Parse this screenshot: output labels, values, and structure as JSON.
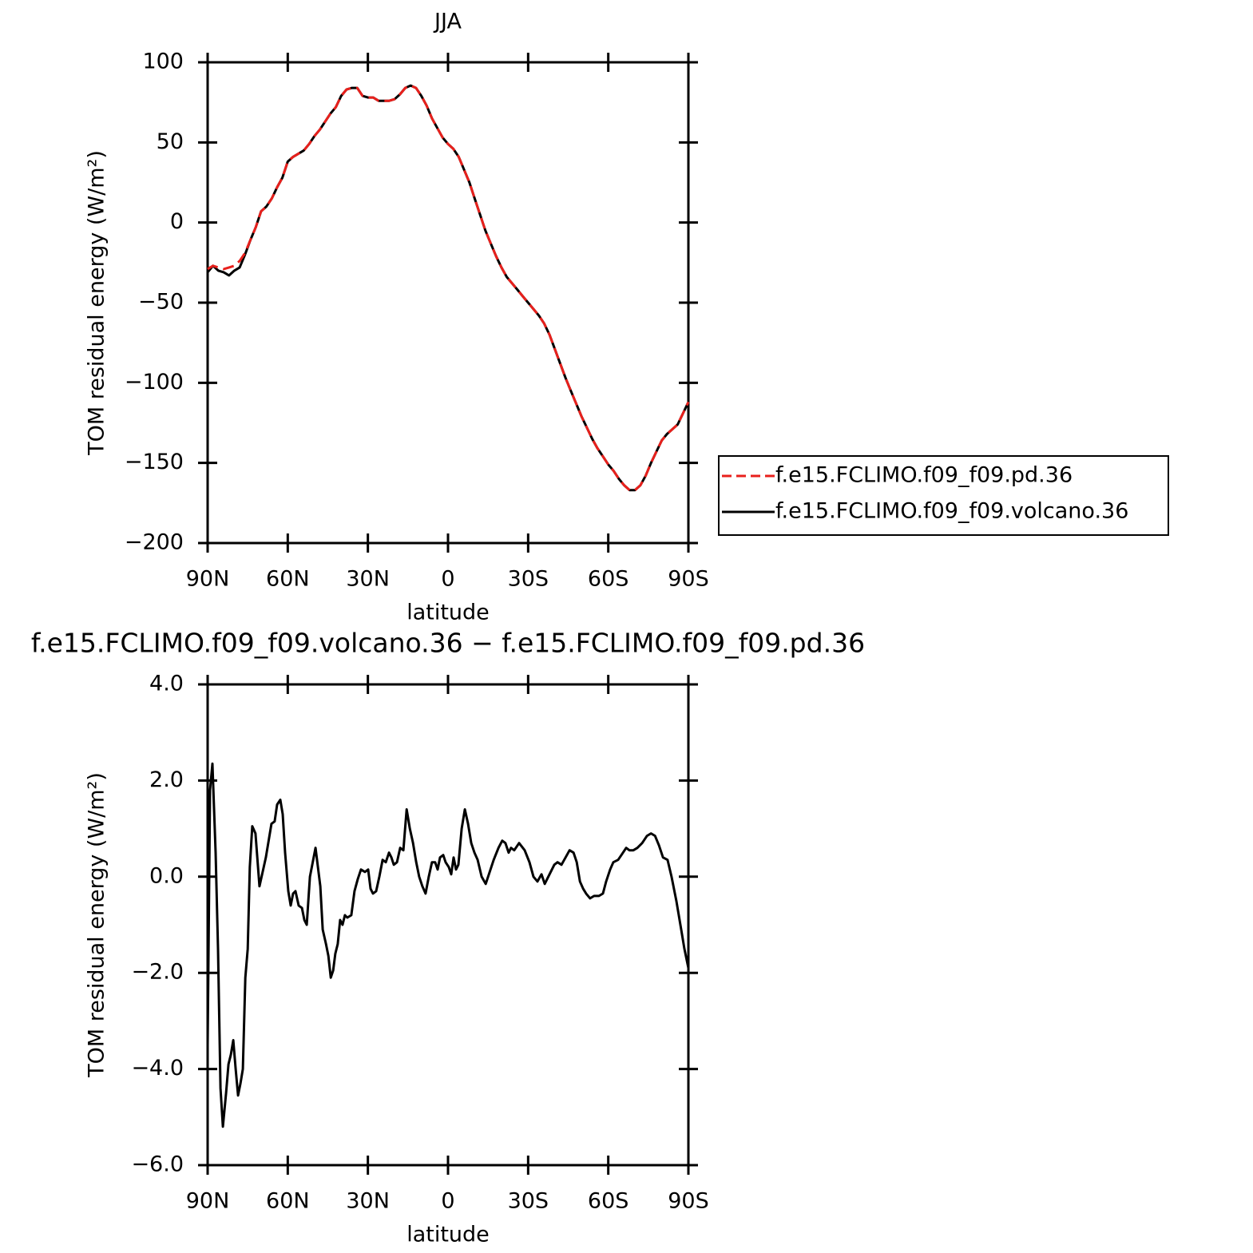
{
  "chart_data": [
    {
      "type": "line",
      "title": "JJA",
      "xlabel": "latitude",
      "ylabel": "TOM residual energy (W/m²)",
      "xlim": [
        90,
        -90
      ],
      "xticks": [
        {
          "value": 90,
          "label": "90N"
        },
        {
          "value": 60,
          "label": "60N"
        },
        {
          "value": 30,
          "label": "30N"
        },
        0,
        {
          "value": -30,
          "label": "30S"
        },
        {
          "value": -60,
          "label": "60S"
        },
        {
          "value": -90,
          "label": "90S"
        }
      ],
      "ylim": [
        -200,
        100
      ],
      "yticks": [
        {
          "value": 100,
          "label": "100"
        },
        {
          "value": 50,
          "label": "50"
        },
        0,
        {
          "value": -50,
          "label": "−50"
        },
        {
          "value": -100,
          "label": "−100"
        },
        {
          "value": -150,
          "label": "−150"
        },
        {
          "value": -200,
          "label": "−200"
        }
      ],
      "legend": "right",
      "x": [
        90,
        88,
        86,
        84,
        82,
        80,
        78,
        76,
        74,
        72,
        70,
        68,
        66,
        64,
        62,
        60,
        58,
        56,
        54,
        52,
        50,
        48,
        46,
        44,
        42,
        40,
        38,
        36,
        34,
        32,
        30,
        28,
        26,
        24,
        22,
        20,
        18,
        16,
        14,
        12,
        10,
        8,
        6,
        4,
        2,
        0,
        -2,
        -4,
        -6,
        -8,
        -10,
        -12,
        -14,
        -16,
        -18,
        -20,
        -22,
        -24,
        -26,
        -28,
        -30,
        -32,
        -34,
        -36,
        -38,
        -40,
        -42,
        -44,
        -46,
        -48,
        -50,
        -52,
        -54,
        -56,
        -58,
        -60,
        -62,
        -64,
        -66,
        -68,
        -70,
        -72,
        -74,
        -76,
        -78,
        -80,
        -82,
        -84,
        -86,
        -88,
        -90
      ],
      "series": [
        {
          "name": "f.e15.FCLIMO.f09_f09.pd.36",
          "color": "#e8201c",
          "line_style": "dashed",
          "values": [
            -29,
            -27,
            -28,
            -29,
            -28,
            -27,
            -24,
            -19,
            -11,
            -3,
            7,
            10,
            15,
            22,
            28,
            38,
            41,
            43,
            45,
            49,
            54,
            58,
            63,
            68,
            72,
            79,
            83,
            84,
            84,
            79,
            78,
            78,
            76,
            76,
            76,
            77,
            80,
            84,
            85.5,
            84,
            79,
            73,
            65,
            59,
            53,
            49,
            46,
            41,
            33,
            25,
            15,
            5,
            -5,
            -13,
            -21,
            -28,
            -34,
            -38,
            -42,
            -46,
            -50,
            -54,
            -58,
            -63,
            -70,
            -79,
            -88,
            -97,
            -105,
            -113,
            -121,
            -128,
            -135,
            -141,
            -146,
            -151,
            -155,
            -160,
            -164,
            -167,
            -167,
            -164,
            -158,
            -150,
            -143,
            -136,
            -132,
            -129,
            -126,
            -119,
            -112
          ]
        },
        {
          "name": "f.e15.FCLIMO.f09_f09.volcano.36",
          "color": "#000000",
          "line_style": "solid",
          "values": [
            -31,
            -27,
            -30,
            -31,
            -33,
            -30,
            -28,
            -20,
            -11,
            -3,
            7,
            10,
            15,
            22,
            28,
            38,
            41,
            43,
            45,
            49,
            54,
            58,
            63,
            68,
            72,
            79,
            83,
            84,
            84,
            79,
            78,
            78,
            76,
            76,
            76,
            77,
            80,
            84,
            85.5,
            84,
            79,
            73,
            65,
            59,
            53,
            49,
            46,
            41,
            33,
            25,
            15,
            5,
            -5,
            -13,
            -21,
            -28,
            -34,
            -38,
            -42,
            -46,
            -50,
            -54,
            -58,
            -63,
            -70,
            -79,
            -88,
            -97,
            -105,
            -113,
            -121,
            -128,
            -135,
            -141,
            -146,
            -151,
            -155,
            -160,
            -164,
            -167,
            -167,
            -164,
            -158,
            -150,
            -143,
            -136,
            -132,
            -129,
            -126,
            -119,
            -112
          ]
        }
      ]
    },
    {
      "type": "line",
      "title": "f.e15.FCLIMO.f09_f09.volcano.36 − f.e15.FCLIMO.f09_f09.pd.36",
      "xlabel": "latitude",
      "ylabel": "TOM residual energy (W/m²)",
      "xlim": [
        90,
        -90
      ],
      "xticks": [
        {
          "value": 90,
          "label": "90N"
        },
        {
          "value": 60,
          "label": "60N"
        },
        {
          "value": 30,
          "label": "30N"
        },
        0,
        {
          "value": -30,
          "label": "30S"
        },
        {
          "value": -60,
          "label": "60S"
        },
        {
          "value": -90,
          "label": "90S"
        }
      ],
      "ylim": [
        -6,
        4
      ],
      "yticks": [
        {
          "value": 4,
          "label": "4.0"
        },
        {
          "value": 2,
          "label": "2.0"
        },
        {
          "value": 0,
          "label": "0.0"
        },
        {
          "value": -2,
          "label": "−2.0"
        },
        {
          "value": -4,
          "label": "−4.0"
        },
        {
          "value": -6,
          "label": "−6.0"
        }
      ],
      "color": "#000000",
      "x": [
        90,
        89.1,
        88.2,
        87,
        86.1,
        85.2,
        84.3,
        83.1,
        82.2,
        81.3,
        80.4,
        79.5,
        78.6,
        77.7,
        76.8,
        75.9,
        75,
        74.2,
        73.3,
        72.1,
        70.6,
        69.4,
        68.2,
        66.1,
        64.9,
        64,
        62.8,
        61.9,
        61,
        59.8,
        58.9,
        58,
        57.1,
        55.9,
        54.7,
        53.8,
        52.9,
        51.7,
        49.6,
        47.8,
        46.9,
        45.7,
        44.8,
        43.9,
        43,
        42.2,
        41.3,
        40.4,
        39.5,
        38.6,
        37.7,
        36.2,
        35,
        33.8,
        32.6,
        31.1,
        29.9,
        29,
        28.1,
        26.9,
        25.7,
        24.5,
        23.3,
        22.1,
        21.2,
        20.3,
        19.1,
        17.9,
        16.7,
        15.5,
        14.3,
        13.1,
        11.9,
        10.8,
        9.6,
        8.4,
        7.2,
        6,
        4.8,
        3.9,
        3,
        1.8,
        0.9,
        -0.3,
        -1.2,
        -2.1,
        -3,
        -3.9,
        -5.1,
        -6.3,
        -7.5,
        -8.7,
        -9.9,
        -11.1,
        -12.6,
        -14.1,
        -15.3,
        -17.1,
        -18.9,
        -20.3,
        -21.5,
        -22.7,
        -23.6,
        -24.8,
        -26.6,
        -28.7,
        -30.5,
        -32,
        -33.5,
        -35,
        -36.2,
        -38,
        -39.8,
        -41,
        -42.5,
        -44,
        -45.5,
        -47,
        -48.2,
        -49.4,
        -50.6,
        -51.7,
        -53.2,
        -54.7,
        -56.5,
        -58,
        -59.2,
        -60.7,
        -61.9,
        -63.7,
        -64.9,
        -66.7,
        -67.9,
        -69.4,
        -70.9,
        -72.7,
        -74.5,
        -76,
        -77.5,
        -79,
        -80.5,
        -82.2,
        -83.7,
        -85.5,
        -87.3,
        -88.5,
        -90
      ],
      "values": [
        -3.5,
        1.8,
        2.35,
        0.5,
        -1.5,
        -4.4,
        -5.2,
        -4.5,
        -3.9,
        -3.7,
        -3.4,
        -4,
        -4.55,
        -4.3,
        -4,
        -2.1,
        -1.5,
        0.2,
        1.05,
        0.9,
        -0.2,
        0.1,
        0.4,
        1.1,
        1.15,
        1.5,
        1.6,
        1.3,
        0.5,
        -0.3,
        -0.6,
        -0.35,
        -0.3,
        -0.6,
        -0.65,
        -0.9,
        -1,
        0,
        0.6,
        -0.2,
        -1.1,
        -1.4,
        -1.65,
        -2.1,
        -1.95,
        -1.6,
        -1.4,
        -0.9,
        -1,
        -0.8,
        -0.85,
        -0.8,
        -0.3,
        -0.05,
        0.15,
        0.1,
        0.15,
        -0.25,
        -0.35,
        -0.3,
        0,
        0.35,
        0.3,
        0.5,
        0.4,
        0.25,
        0.3,
        0.6,
        0.55,
        1.4,
        1,
        0.7,
        0.3,
        0,
        -0.2,
        -0.35,
        0,
        0.3,
        0.3,
        0.15,
        0.4,
        0.45,
        0.3,
        0.2,
        0.05,
        0.4,
        0.15,
        0.25,
        1,
        1.4,
        1.1,
        0.7,
        0.5,
        0.35,
        0,
        -0.15,
        0.05,
        0.35,
        0.6,
        0.75,
        0.7,
        0.5,
        0.6,
        0.55,
        0.7,
        0.55,
        0.3,
        0,
        -0.1,
        0.05,
        -0.15,
        0.05,
        0.25,
        0.3,
        0.25,
        0.4,
        0.55,
        0.5,
        0.3,
        -0.1,
        -0.25,
        -0.35,
        -0.45,
        -0.4,
        -0.4,
        -0.35,
        -0.1,
        0.15,
        0.3,
        0.35,
        0.45,
        0.6,
        0.55,
        0.55,
        0.6,
        0.7,
        0.85,
        0.9,
        0.85,
        0.65,
        0.4,
        0.35,
        0,
        -0.5,
        -1.1,
        -1.5,
        -1.9
      ]
    }
  ]
}
